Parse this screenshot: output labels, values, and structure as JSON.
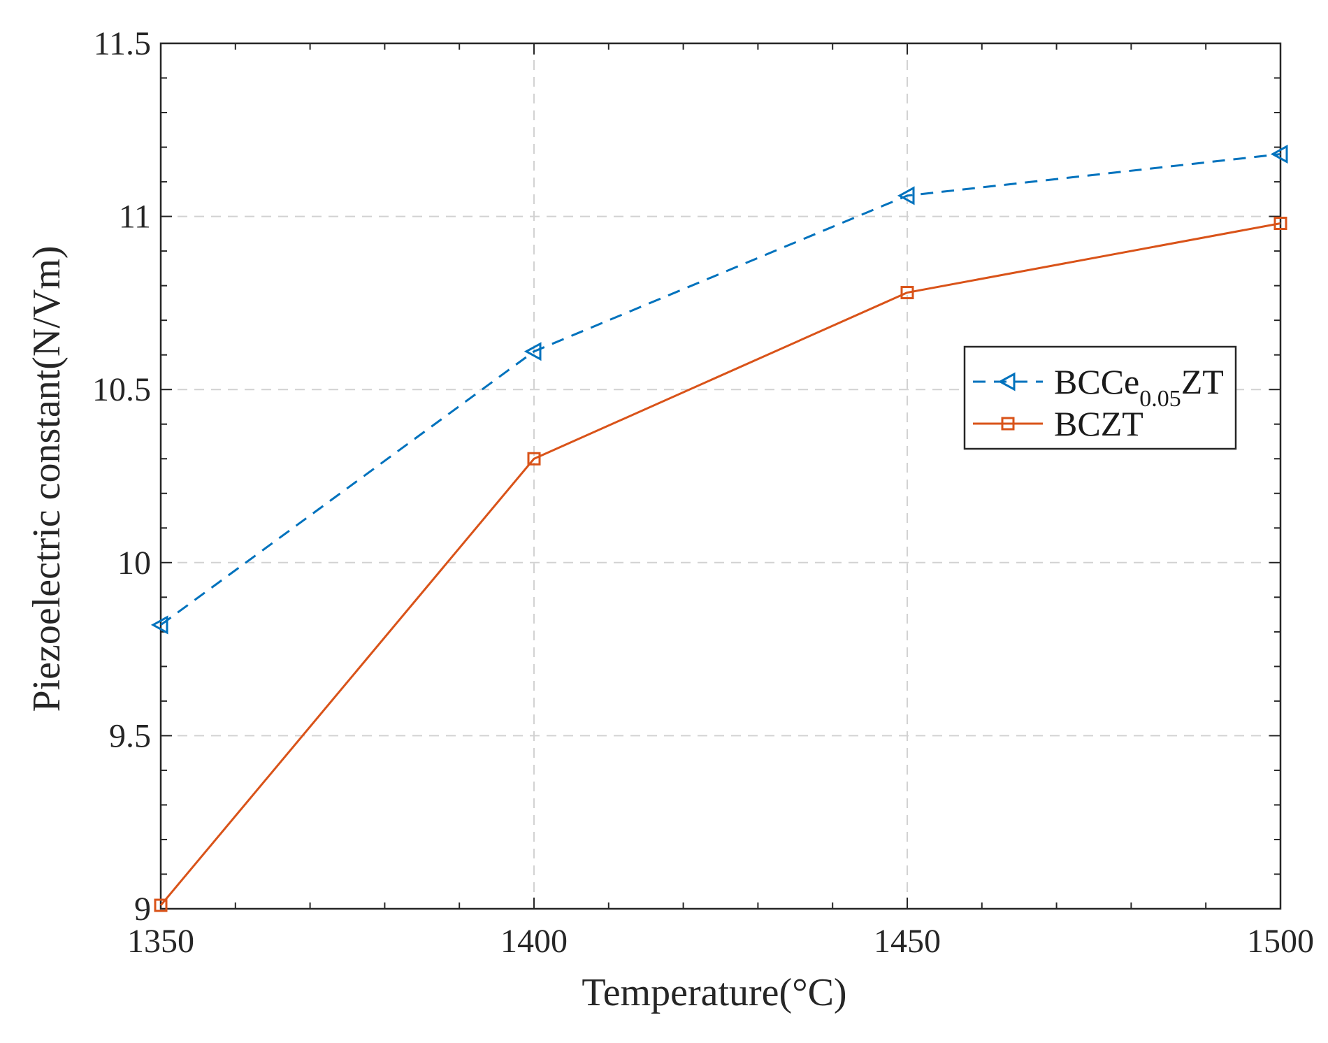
{
  "chart_data": {
    "type": "line",
    "title": "",
    "xlabel": "Temperature(°C)",
    "ylabel": "Piezoelectric constant(N/Vm)",
    "x": [
      1350,
      1400,
      1450,
      1500
    ],
    "xlim": [
      1350,
      1500
    ],
    "ylim": [
      9,
      11.5
    ],
    "xticks": [
      1350,
      1400,
      1450,
      1500
    ],
    "yticks": [
      9,
      9.5,
      10,
      10.5,
      11,
      11.5
    ],
    "x_tick_labels": [
      "1350",
      "1400",
      "1450",
      "1500"
    ],
    "y_tick_labels": [
      "9",
      "9.5",
      "10",
      "10.5",
      "11",
      "11.5"
    ],
    "grid": true,
    "legend_position": "right-middle",
    "series": [
      {
        "name": "BCCe0.05ZT",
        "legend_main": "BCCe",
        "legend_sub": "0.05",
        "legend_tail": "ZT",
        "values": [
          9.82,
          10.61,
          11.06,
          11.18
        ],
        "color": "#0072BD",
        "line_style": "dashed",
        "marker": "left-triangle"
      },
      {
        "name": "BCZT",
        "legend_main": "BCZT",
        "legend_sub": "",
        "legend_tail": "",
        "values": [
          9.01,
          10.3,
          10.78,
          10.98
        ],
        "color": "#D95319",
        "line_style": "solid",
        "marker": "square"
      }
    ]
  }
}
